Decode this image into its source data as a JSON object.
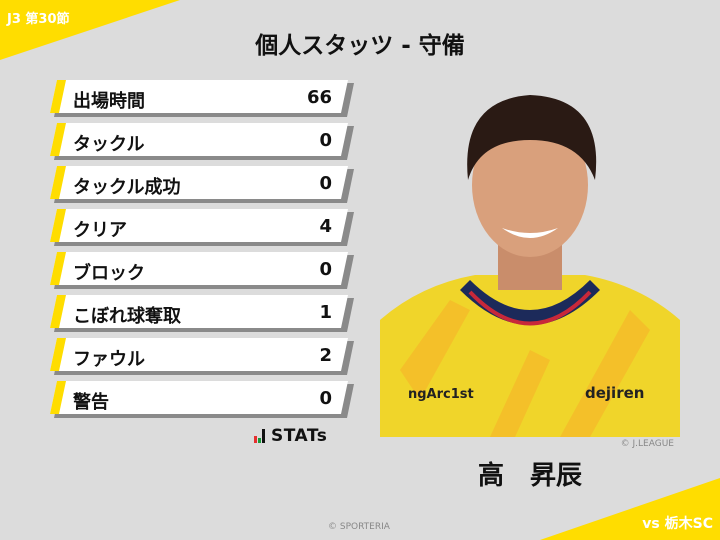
{
  "header": {
    "round": "J3 第30節",
    "title": "個人スタッツ - 守備",
    "opponent": "vs 栃木SC"
  },
  "stats": [
    {
      "label": "出場時間",
      "value": "66"
    },
    {
      "label": "タックル",
      "value": "0"
    },
    {
      "label": "タックル成功",
      "value": "0"
    },
    {
      "label": "クリア",
      "value": "4"
    },
    {
      "label": "ブロック",
      "value": "0"
    },
    {
      "label": "こぼれ球奪取",
      "value": "1"
    },
    {
      "label": "ファウル",
      "value": "2"
    },
    {
      "label": "警告",
      "value": "0"
    }
  ],
  "logo": {
    "text": "STATs"
  },
  "player": {
    "name": "高　昇辰",
    "photo_credit": "© J.LEAGUE",
    "sponsor_text": "dejiren",
    "sponsor_left": "ngArc1st"
  },
  "footer": {
    "copyright": "© SPORTERIA"
  },
  "colors": {
    "accent": "#ffdd00",
    "background": "#dcdcdc"
  }
}
